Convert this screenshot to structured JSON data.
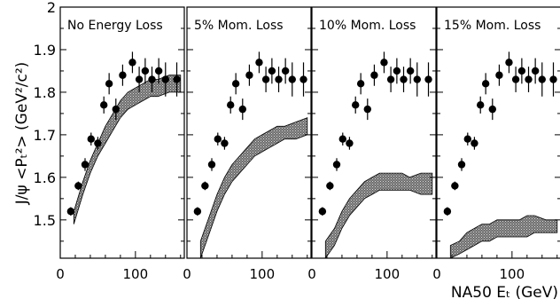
{
  "figure": {
    "ylabel": "J/ψ <Pₜ²> (GeV²/c²)",
    "xlabel": "NA50 Eₜ (GeV)"
  },
  "colors": {
    "band": "#8a8a8a",
    "points": "#000000",
    "frame": "#000000"
  },
  "chart_data": {
    "type": "scatter",
    "xlim": [
      0,
      165
    ],
    "ylim": [
      1.41,
      2.0
    ],
    "xticks": [
      0,
      100
    ],
    "xtick_labels": [
      "0",
      "100"
    ],
    "yticks": [
      1.5,
      1.6,
      1.7,
      1.8,
      1.9,
      2.0
    ],
    "ytick_labels": [
      "1.5",
      "1.6",
      "1.7",
      "1.8",
      "1.9",
      "2"
    ],
    "points": {
      "x": [
        14,
        24,
        33,
        41,
        50,
        58,
        65,
        74,
        83,
        96,
        105,
        113,
        122,
        131,
        140,
        155
      ],
      "y": [
        1.52,
        1.58,
        1.63,
        1.69,
        1.68,
        1.77,
        1.82,
        1.76,
        1.84,
        1.87,
        1.83,
        1.85,
        1.83,
        1.85,
        1.83,
        1.83
      ],
      "err": [
        0.01,
        0.01,
        0.015,
        0.015,
        0.015,
        0.02,
        0.025,
        0.025,
        0.025,
        0.025,
        0.03,
        0.03,
        0.03,
        0.03,
        0.04,
        0.04
      ]
    },
    "panels": [
      {
        "title": "No Energy Loss",
        "band_x": [
          18,
          30,
          40,
          50,
          60,
          70,
          80,
          90,
          100,
          110,
          120,
          130,
          145,
          160
        ],
        "band_low": [
          1.49,
          1.56,
          1.61,
          1.65,
          1.68,
          1.71,
          1.74,
          1.76,
          1.77,
          1.78,
          1.79,
          1.79,
          1.8,
          1.8
        ],
        "band_high": [
          1.52,
          1.59,
          1.64,
          1.68,
          1.72,
          1.75,
          1.78,
          1.8,
          1.81,
          1.82,
          1.83,
          1.83,
          1.84,
          1.84
        ]
      },
      {
        "title": "5% Mom. Loss",
        "band_x": [
          18,
          30,
          40,
          50,
          60,
          70,
          80,
          90,
          100,
          110,
          120,
          130,
          145,
          160
        ],
        "band_low": [
          1.41,
          1.47,
          1.52,
          1.56,
          1.59,
          1.61,
          1.63,
          1.65,
          1.66,
          1.67,
          1.68,
          1.69,
          1.69,
          1.7
        ],
        "band_high": [
          1.45,
          1.51,
          1.56,
          1.6,
          1.63,
          1.65,
          1.67,
          1.69,
          1.7,
          1.71,
          1.72,
          1.72,
          1.73,
          1.74
        ]
      },
      {
        "title": "10% Mom. Loss",
        "band_x": [
          18,
          30,
          40,
          50,
          60,
          70,
          80,
          90,
          100,
          110,
          120,
          130,
          145,
          160
        ],
        "band_low": [
          1.41,
          1.44,
          1.48,
          1.51,
          1.53,
          1.55,
          1.56,
          1.57,
          1.57,
          1.57,
          1.57,
          1.57,
          1.56,
          1.56
        ],
        "band_high": [
          1.45,
          1.48,
          1.52,
          1.55,
          1.57,
          1.59,
          1.6,
          1.61,
          1.61,
          1.61,
          1.61,
          1.6,
          1.61,
          1.61
        ]
      },
      {
        "title": "15% Mom. Loss",
        "band_x": [
          18,
          30,
          40,
          50,
          60,
          70,
          80,
          90,
          100,
          110,
          120,
          130,
          145,
          160
        ],
        "band_low": [
          1.41,
          1.42,
          1.43,
          1.44,
          1.45,
          1.45,
          1.46,
          1.46,
          1.46,
          1.46,
          1.46,
          1.47,
          1.47,
          1.47
        ],
        "band_high": [
          1.44,
          1.45,
          1.47,
          1.48,
          1.49,
          1.49,
          1.5,
          1.5,
          1.5,
          1.5,
          1.51,
          1.51,
          1.5,
          1.5
        ]
      }
    ]
  }
}
